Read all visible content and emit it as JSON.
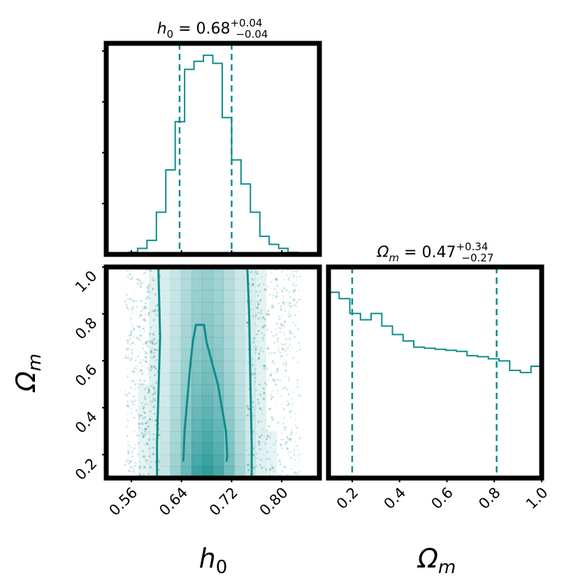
{
  "colors": {
    "accent": "#0f8c8c",
    "frame": "#000000",
    "background": "#ffffff"
  },
  "chart_data": {
    "type": "corner",
    "parameters": [
      "h_0",
      "Omega_m"
    ],
    "panels": [
      {
        "name": "h0-marginal",
        "type": "histogram",
        "title": {
          "symbol": "h",
          "symbol_sub": "0",
          "equals": "=",
          "value": "0.68",
          "err_plus": "+0.04",
          "err_minus": "−0.04"
        },
        "xlim": [
          0.52,
          0.86
        ],
        "bin_edges": [
          0.555,
          0.57,
          0.585,
          0.6,
          0.615,
          0.63,
          0.645,
          0.66,
          0.675,
          0.69,
          0.705,
          0.72,
          0.735,
          0.75,
          0.765,
          0.78,
          0.795,
          0.81,
          0.825
        ],
        "counts": [
          0.01,
          0.03,
          0.07,
          0.21,
          0.42,
          0.66,
          0.92,
          0.96,
          0.99,
          0.95,
          0.68,
          0.47,
          0.35,
          0.21,
          0.09,
          0.05,
          0.03,
          0.01
        ],
        "quantiles": [
          0.637,
          0.72
        ]
      },
      {
        "name": "omega-marginal",
        "type": "histogram",
        "title": {
          "symbol": "Ω",
          "symbol_sub": "m",
          "equals": "=",
          "value": "0.47",
          "err_plus": "+0.34",
          "err_minus": "−0.27"
        },
        "xlim": [
          0.1,
          1.0
        ],
        "bin_edges": [
          0.1,
          0.145,
          0.19,
          0.235,
          0.28,
          0.325,
          0.37,
          0.415,
          0.46,
          0.505,
          0.55,
          0.595,
          0.64,
          0.685,
          0.73,
          0.775,
          0.82,
          0.865,
          0.91,
          0.955,
          1.0
        ],
        "counts": [
          0.88,
          0.85,
          0.78,
          0.75,
          0.78,
          0.72,
          0.68,
          0.65,
          0.62,
          0.615,
          0.61,
          0.605,
          0.6,
          0.58,
          0.575,
          0.565,
          0.555,
          0.51,
          0.5,
          0.53
        ],
        "ylim": [
          0,
          1.0
        ],
        "quantiles": [
          0.2,
          0.81
        ]
      },
      {
        "name": "joint-density",
        "type": "2d-histogram-contour",
        "xlim": [
          0.52,
          0.86
        ],
        "ylim": [
          0.1,
          1.0
        ],
        "xlabel": "h_0",
        "ylabel": "Omega_m",
        "x_center": 0.68,
        "scatter_h0_range": [
          0.55,
          0.83
        ],
        "contour_outer": [
          [
            0.601,
            0.1
          ],
          [
            0.601,
            0.25
          ],
          [
            0.603,
            0.45
          ],
          [
            0.606,
            0.7
          ],
          [
            0.604,
            0.9
          ],
          [
            0.603,
            1.0
          ],
          [
            0.745,
            1.0
          ],
          [
            0.748,
            0.8
          ],
          [
            0.75,
            0.5
          ],
          [
            0.752,
            0.25
          ],
          [
            0.752,
            0.1
          ]
        ],
        "contour_inner": [
          [
            0.643,
            0.17
          ],
          [
            0.645,
            0.3
          ],
          [
            0.653,
            0.55
          ],
          [
            0.658,
            0.68
          ],
          [
            0.663,
            0.753
          ],
          [
            0.676,
            0.753
          ],
          [
            0.68,
            0.68
          ],
          [
            0.698,
            0.5
          ],
          [
            0.711,
            0.3
          ],
          [
            0.713,
            0.2
          ],
          [
            0.712,
            0.17
          ]
        ]
      }
    ],
    "axes": {
      "h0_ticks": [
        0.56,
        0.64,
        0.72,
        0.8
      ],
      "h0_tick_labels": [
        "0.56",
        "0.64",
        "0.72",
        "0.80"
      ],
      "omega_ticks": [
        0.2,
        0.4,
        0.6,
        0.8,
        1.0
      ],
      "omega_tick_labels": [
        "0.2",
        "0.4",
        "0.6",
        "0.8",
        "1.0"
      ],
      "x_labels": [
        {
          "symbol": "h",
          "sub": "0"
        },
        {
          "symbol": "Ω",
          "sub": "m"
        }
      ],
      "y_label": {
        "symbol": "Ω",
        "sub": "m"
      }
    }
  }
}
